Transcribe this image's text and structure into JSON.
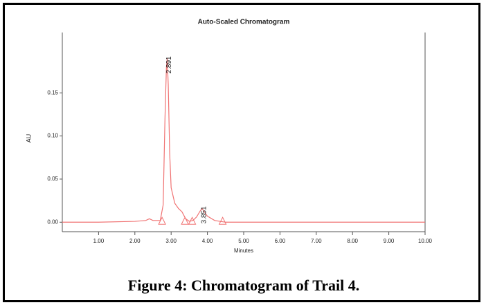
{
  "chart_data": {
    "type": "line",
    "title": "Auto-Scaled Chromatogram",
    "x_label": "Minutes",
    "y_label": "AU",
    "x": [
      0,
      1.0,
      2.0,
      2.3,
      2.4,
      2.5,
      2.7,
      2.78,
      2.83,
      2.87,
      2.891,
      2.92,
      2.96,
      3.0,
      3.1,
      3.2,
      3.3,
      3.4,
      3.5,
      3.6,
      3.7,
      3.8,
      3.851,
      3.9,
      4.0,
      4.2,
      4.5,
      5,
      10
    ],
    "series": [
      {
        "color": "#f07373",
        "values": [
          0,
          0,
          0.001,
          0.002,
          0.004,
          0.002,
          0.002,
          0.02,
          0.12,
          0.18,
          0.19,
          0.16,
          0.08,
          0.04,
          0.022,
          0.016,
          0.012,
          0.004,
          0.001,
          0.002,
          0.006,
          0.013,
          0.016,
          0.013,
          0.007,
          0.002,
          0,
          0,
          0
        ]
      }
    ],
    "peak_labels": [
      2.891,
      3.851
    ],
    "integration_marks": [
      2.75,
      3.38,
      3.58,
      4.42
    ],
    "xlim": [
      0,
      10
    ],
    "ylim": [
      -0.011,
      0.22
    ],
    "xticks": [
      {
        "value": 1,
        "label": "1.00"
      },
      {
        "value": 2,
        "label": "2.00"
      },
      {
        "value": 3,
        "label": "3.00"
      },
      {
        "value": 4,
        "label": "4.00"
      },
      {
        "value": 5,
        "label": "5.00"
      },
      {
        "value": 6,
        "label": "6.00"
      },
      {
        "value": 7,
        "label": "7.00"
      },
      {
        "value": 8,
        "label": "8.00"
      },
      {
        "value": 9,
        "label": "9.00"
      },
      {
        "value": 10,
        "label": "10.00"
      }
    ],
    "yticks": [
      {
        "value": 0,
        "label": "0.00"
      },
      {
        "value": 0.05,
        "label": "0.05"
      },
      {
        "value": 0.1,
        "label": "0.10"
      },
      {
        "value": 0.15,
        "label": "0.15"
      }
    ]
  },
  "caption": "Figure 4:  Chromatogram of Trail 4."
}
